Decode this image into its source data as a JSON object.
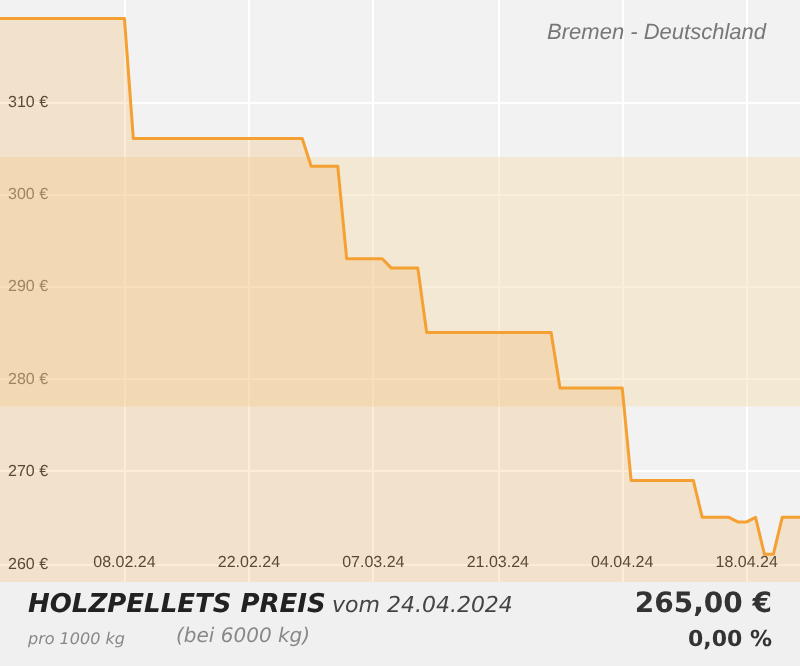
{
  "chart_data": {
    "type": "area",
    "title": "HOLZPELLETS PREIS",
    "subtitle": "Bremen - Deutschland",
    "annotations": [
      "vom 24.04.2024",
      "pro 1000 kg",
      "(bei 6000 kg)",
      "265,00 €",
      "0,00 %"
    ],
    "x": [
      "2024-01-25",
      "2024-02-08",
      "2024-02-09",
      "2024-02-28",
      "2024-02-29",
      "2024-03-03",
      "2024-03-04",
      "2024-03-08",
      "2024-03-09",
      "2024-03-12",
      "2024-03-13",
      "2024-03-27",
      "2024-03-28",
      "2024-04-04",
      "2024-04-05",
      "2024-04-12",
      "2024-04-13",
      "2024-04-16",
      "2024-04-17",
      "2024-04-18",
      "2024-04-19",
      "2024-04-20",
      "2024-04-21",
      "2024-04-22",
      "2024-04-24"
    ],
    "series": [
      {
        "color": "#f5a033",
        "values": [
          319,
          319,
          306,
          306,
          303,
          303,
          293,
          293,
          292,
          292,
          285,
          285,
          279,
          279,
          269,
          269,
          265,
          265,
          264.5,
          264.5,
          265,
          261,
          261,
          265,
          265
        ]
      }
    ],
    "xlim": [
      "2024-01-25",
      "2024-04-24"
    ],
    "xticks": [
      {
        "value": "2024-02-08",
        "label": "08.02.24"
      },
      {
        "value": "2024-02-22",
        "label": "22.02.24"
      },
      {
        "value": "2024-03-07",
        "label": "07.03.24"
      },
      {
        "value": "2024-03-21",
        "label": "21.03.24"
      },
      {
        "value": "2024-04-04",
        "label": "04.04.24"
      },
      {
        "value": "2024-04-18",
        "label": "18.04.24"
      }
    ],
    "ylim": [
      258,
      321
    ],
    "yticks": [
      {
        "value": 260,
        "label": "260 €"
      },
      {
        "value": 270,
        "label": "270 €"
      },
      {
        "value": 280,
        "label": "280 €"
      },
      {
        "value": 290,
        "label": "290 €"
      },
      {
        "value": 300,
        "label": "300 €"
      },
      {
        "value": 310,
        "label": "310 €"
      }
    ],
    "bands": [
      {
        "axis": "y",
        "from": 277,
        "to": 304,
        "color": "#f5dcb0"
      }
    ],
    "grid": true,
    "marker": "none",
    "line_style": "solid"
  }
}
